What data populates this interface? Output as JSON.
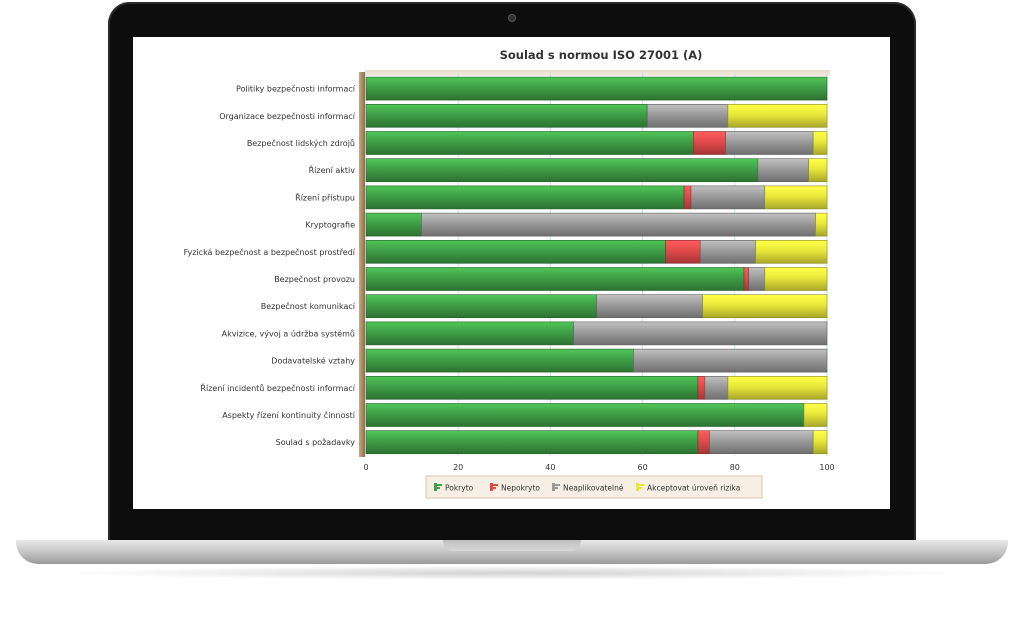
{
  "chart_data": {
    "type": "bar",
    "orientation": "horizontal",
    "stacked": true,
    "title": "Soulad s normou ISO 27001 (A)",
    "categories": [
      "Politiky bezpečnosti informací",
      "Organizace bezpečnosti informací",
      "Bezpečnost lidských zdrojů",
      "Řízení aktiv",
      "Řízení přístupu",
      "Kryptografie",
      "Fyzická bezpečnost a bezpečnost prostředí",
      "Bezpečnost provozu",
      "Bezpečnost komunikací",
      "Akvizice, vývoj a údržba systémů",
      "Dodavatelské vztahy",
      "Řízení incidentů bezpečnosti informací",
      "Aspekty řízení kontinuity činností",
      "Soulad s požadavky"
    ],
    "series": [
      {
        "name": "Pokryto",
        "color": "#3f9e46",
        "values": [
          100,
          61,
          71,
          85,
          69,
          12,
          65,
          82,
          50,
          45,
          58,
          72,
          95,
          72
        ]
      },
      {
        "name": "Nepokryto",
        "color": "#e24a4a",
        "values": [
          0,
          0,
          7,
          0,
          1.5,
          0,
          7.5,
          1,
          0,
          0,
          0,
          1.5,
          0,
          2.5
        ]
      },
      {
        "name": "Neaplikovatelné",
        "color": "#9a9a9a",
        "values": [
          0,
          17.5,
          19,
          11,
          16,
          85.5,
          12,
          3.5,
          23,
          55,
          42,
          5,
          0,
          22.5
        ]
      },
      {
        "name": "Akceptovat úroveň rizika",
        "color": "#e9e83a",
        "values": [
          0,
          21.5,
          3,
          4,
          13.5,
          2.5,
          15.5,
          13.5,
          27,
          0,
          0,
          21.5,
          5,
          3
        ]
      }
    ],
    "xlim": [
      0,
      100
    ],
    "xticks": [
      "0",
      "20",
      "40",
      "60",
      "80",
      "100"
    ],
    "grid": true,
    "legend_position": "bottom"
  }
}
